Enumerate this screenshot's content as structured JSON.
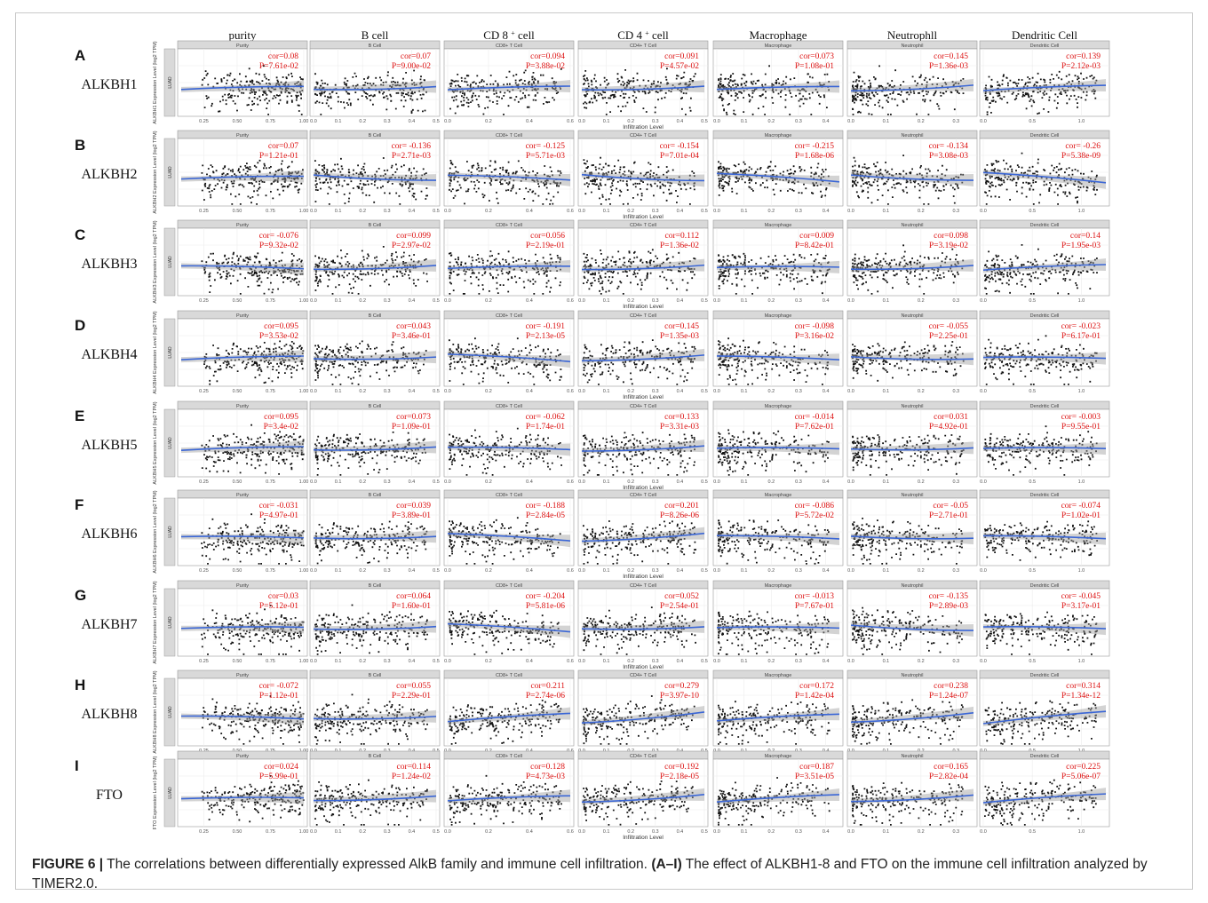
{
  "columns": [
    {
      "header": "purity",
      "strip": "Purity",
      "ticks": [
        "0.25",
        "0.50",
        "0.75",
        "1.00"
      ],
      "tickvals": [
        0.25,
        0.5,
        0.75,
        1.0
      ],
      "xlim": [
        0.08,
        1.0
      ]
    },
    {
      "header": "B cell",
      "strip": "B Cell",
      "ticks": [
        "0.0",
        "0.1",
        "0.2",
        "0.3",
        "0.4",
        "0.5"
      ],
      "tickvals": [
        0,
        0.1,
        0.2,
        0.3,
        0.4,
        0.5
      ],
      "xlim": [
        0,
        0.5
      ]
    },
    {
      "header": "CD 8 + cell",
      "strip": "CD8+ T Cell",
      "ticks": [
        "0.0",
        "0.2",
        "0.4",
        "0.6"
      ],
      "tickvals": [
        0,
        0.2,
        0.4,
        0.6
      ],
      "xlim": [
        0,
        0.6
      ]
    },
    {
      "header": "CD 4 + cell",
      "strip": "CD4+ T Cell",
      "ticks": [
        "0.0",
        "0.1",
        "0.2",
        "0.3",
        "0.4",
        "0.5"
      ],
      "tickvals": [
        0,
        0.1,
        0.2,
        0.3,
        0.4,
        0.5
      ],
      "xlim": [
        0,
        0.5
      ]
    },
    {
      "header": "Macrophage",
      "strip": "Macrophage",
      "ticks": [
        "0.0",
        "0.1",
        "0.2",
        "0.3",
        "0.4"
      ],
      "tickvals": [
        0,
        0.1,
        0.2,
        0.3,
        0.4
      ],
      "xlim": [
        0,
        0.45
      ]
    },
    {
      "header": "Neutrophll",
      "strip": "Neutrophil",
      "ticks": [
        "0.0",
        "0.1",
        "0.2",
        "0.3"
      ],
      "tickvals": [
        0,
        0.1,
        0.2,
        0.3
      ],
      "xlim": [
        0,
        0.35
      ]
    },
    {
      "header": "Dendritic Cell",
      "strip": "Dendritic Cell",
      "ticks": [
        "0.0",
        "0.5",
        "1.0"
      ],
      "tickvals": [
        0,
        0.5,
        1.0
      ],
      "xlim": [
        0,
        1.25
      ]
    }
  ],
  "x_axis_label": "Infiltration Level",
  "cancer_label": "LUAD",
  "chart_data": [
    {
      "type": "scatter",
      "panel": "A",
      "gene": "ALKBH1",
      "ylabel": "ALKBH1 Expression Level (log2 TPM)",
      "cor": [
        "cor=0.08",
        "cor=0.07",
        "cor=0.094",
        "cor=0.091",
        "cor=0.073",
        "cor=0.145",
        "cor=0.139"
      ],
      "p": [
        "P=7.61e-02",
        "P=9.00e-02",
        "P=3.88e-02",
        "P=4.57e-02",
        "P=1.08e-01",
        "P=1.36e-03",
        "P=2.12e-03"
      ]
    },
    {
      "type": "scatter",
      "panel": "B",
      "gene": "ALKBH2",
      "ylabel": "ALKBH2 Expression Level (log2 TPM)",
      "cor": [
        "cor=0.07",
        "cor= -0.136",
        "cor= -0.125",
        "cor= -0.154",
        "cor= -0.215",
        "cor= -0.134",
        "cor= -0.26"
      ],
      "p": [
        "P=1.21e-01",
        "P=2.71e-03",
        "P=5.71e-03",
        "P=7.01e-04",
        "P=1.68e-06",
        "P=3.08e-03",
        "P=5.38e-09"
      ]
    },
    {
      "type": "scatter",
      "panel": "C",
      "gene": "ALKBH3",
      "ylabel": "ALKBH3 Expression Level (log2 TPM)",
      "cor": [
        "cor= -0.076",
        "cor=0.099",
        "cor=0.056",
        "cor=0.112",
        "cor=0.009",
        "cor=0.098",
        "cor=0.14"
      ],
      "p": [
        "P=9.32e-02",
        "P=2.97e-02",
        "P=2.19e-01",
        "P=1.36e-02",
        "P=8.42e-01",
        "P=3.19e-02",
        "P=1.95e-03"
      ]
    },
    {
      "type": "scatter",
      "panel": "D",
      "gene": "ALKBH4",
      "ylabel": "ALKBH4 Expression Level (log2 TPM)",
      "cor": [
        "cor=0.095",
        "cor=0.043",
        "cor= -0.191",
        "cor=0.145",
        "cor= -0.098",
        "cor= -0.055",
        "cor= -0.023"
      ],
      "p": [
        "P=3.53e-02",
        "P=3.46e-01",
        "P=2.13e-05",
        "P=1.35e-03",
        "P=3.16e-02",
        "P=2.25e-01",
        "P=6.17e-01"
      ]
    },
    {
      "type": "scatter",
      "panel": "E",
      "gene": "ALKBH5",
      "ylabel": "ALKBH5 Expression Level (log2 TPM)",
      "cor": [
        "cor=0.095",
        "cor=0.073",
        "cor= -0.062",
        "cor=0.133",
        "cor= -0.014",
        "cor=0.031",
        "cor= -0.003"
      ],
      "p": [
        "P=3.4e-02",
        "P=1.09e-01",
        "P=1.74e-01",
        "P=3.31e-03",
        "P=7.62e-01",
        "P=4.92e-01",
        "P=9.55e-01"
      ]
    },
    {
      "type": "scatter",
      "panel": "F",
      "gene": "ALKBH6",
      "ylabel": "ALKBH6 Expression Level (log2 TPM)",
      "cor": [
        "cor= -0.031",
        "cor=0.039",
        "cor= -0.188",
        "cor=0.201",
        "cor= -0.086",
        "cor= -0.05",
        "cor= -0.074"
      ],
      "p": [
        "P=4.97e-01",
        "P=3.89e-01",
        "P=2.84e-05",
        "P=8.26e-06",
        "P=5.72e-02",
        "P=2.71e-01",
        "P=1.02e-01"
      ]
    },
    {
      "type": "scatter",
      "panel": "G",
      "gene": "ALKBH7",
      "ylabel": "ALKBH7 Expression Level (log2 TPM)",
      "cor": [
        "cor=0.03",
        "cor=0.064",
        "cor= -0.204",
        "cor=0.052",
        "cor= -0.013",
        "cor= -0.135",
        "cor= -0.045"
      ],
      "p": [
        "P=5.12e-01",
        "P=1.60e-01",
        "P=5.81e-06",
        "P=2.54e-01",
        "P=7.67e-01",
        "P=2.89e-03",
        "P=3.17e-01"
      ]
    },
    {
      "type": "scatter",
      "panel": "H",
      "gene": "ALKBH8",
      "ylabel": "ALKBH8 Expression Level (log2 TPM)",
      "cor": [
        "cor= -0.072",
        "cor=0.055",
        "cor=0.211",
        "cor=0.279",
        "cor=0.172",
        "cor=0.238",
        "cor=0.314"
      ],
      "p": [
        "P=1.12e-01",
        "P=2.29e-01",
        "P=2.74e-06",
        "P=3.97e-10",
        "P=1.42e-04",
        "P=1.24e-07",
        "P=1.34e-12"
      ]
    },
    {
      "type": "scatter",
      "panel": "I",
      "gene": "FTO",
      "ylabel": "FTO Expression Level (log2 TPM)",
      "cor": [
        "cor=0.024",
        "cor=0.114",
        "cor=0.128",
        "cor=0.192",
        "cor=0.187",
        "cor=0.165",
        "cor=0.225"
      ],
      "p": [
        "P=5.99e-01",
        "P=1.24e-02",
        "P=4.73e-03",
        "P=2.18e-05",
        "P=3.51e-05",
        "P=2.82e-04",
        "P=5.06e-07"
      ]
    }
  ],
  "caption": {
    "label": "FIGURE 6 |",
    "text1": "The correlations between differentially expressed AlkB family and immune cell infiltration.",
    "panel_ref": "(A–I)",
    "text2": "The effect of ALKBH1-8 and FTO on the immune cell infiltration analyzed by TIMER2.0."
  }
}
